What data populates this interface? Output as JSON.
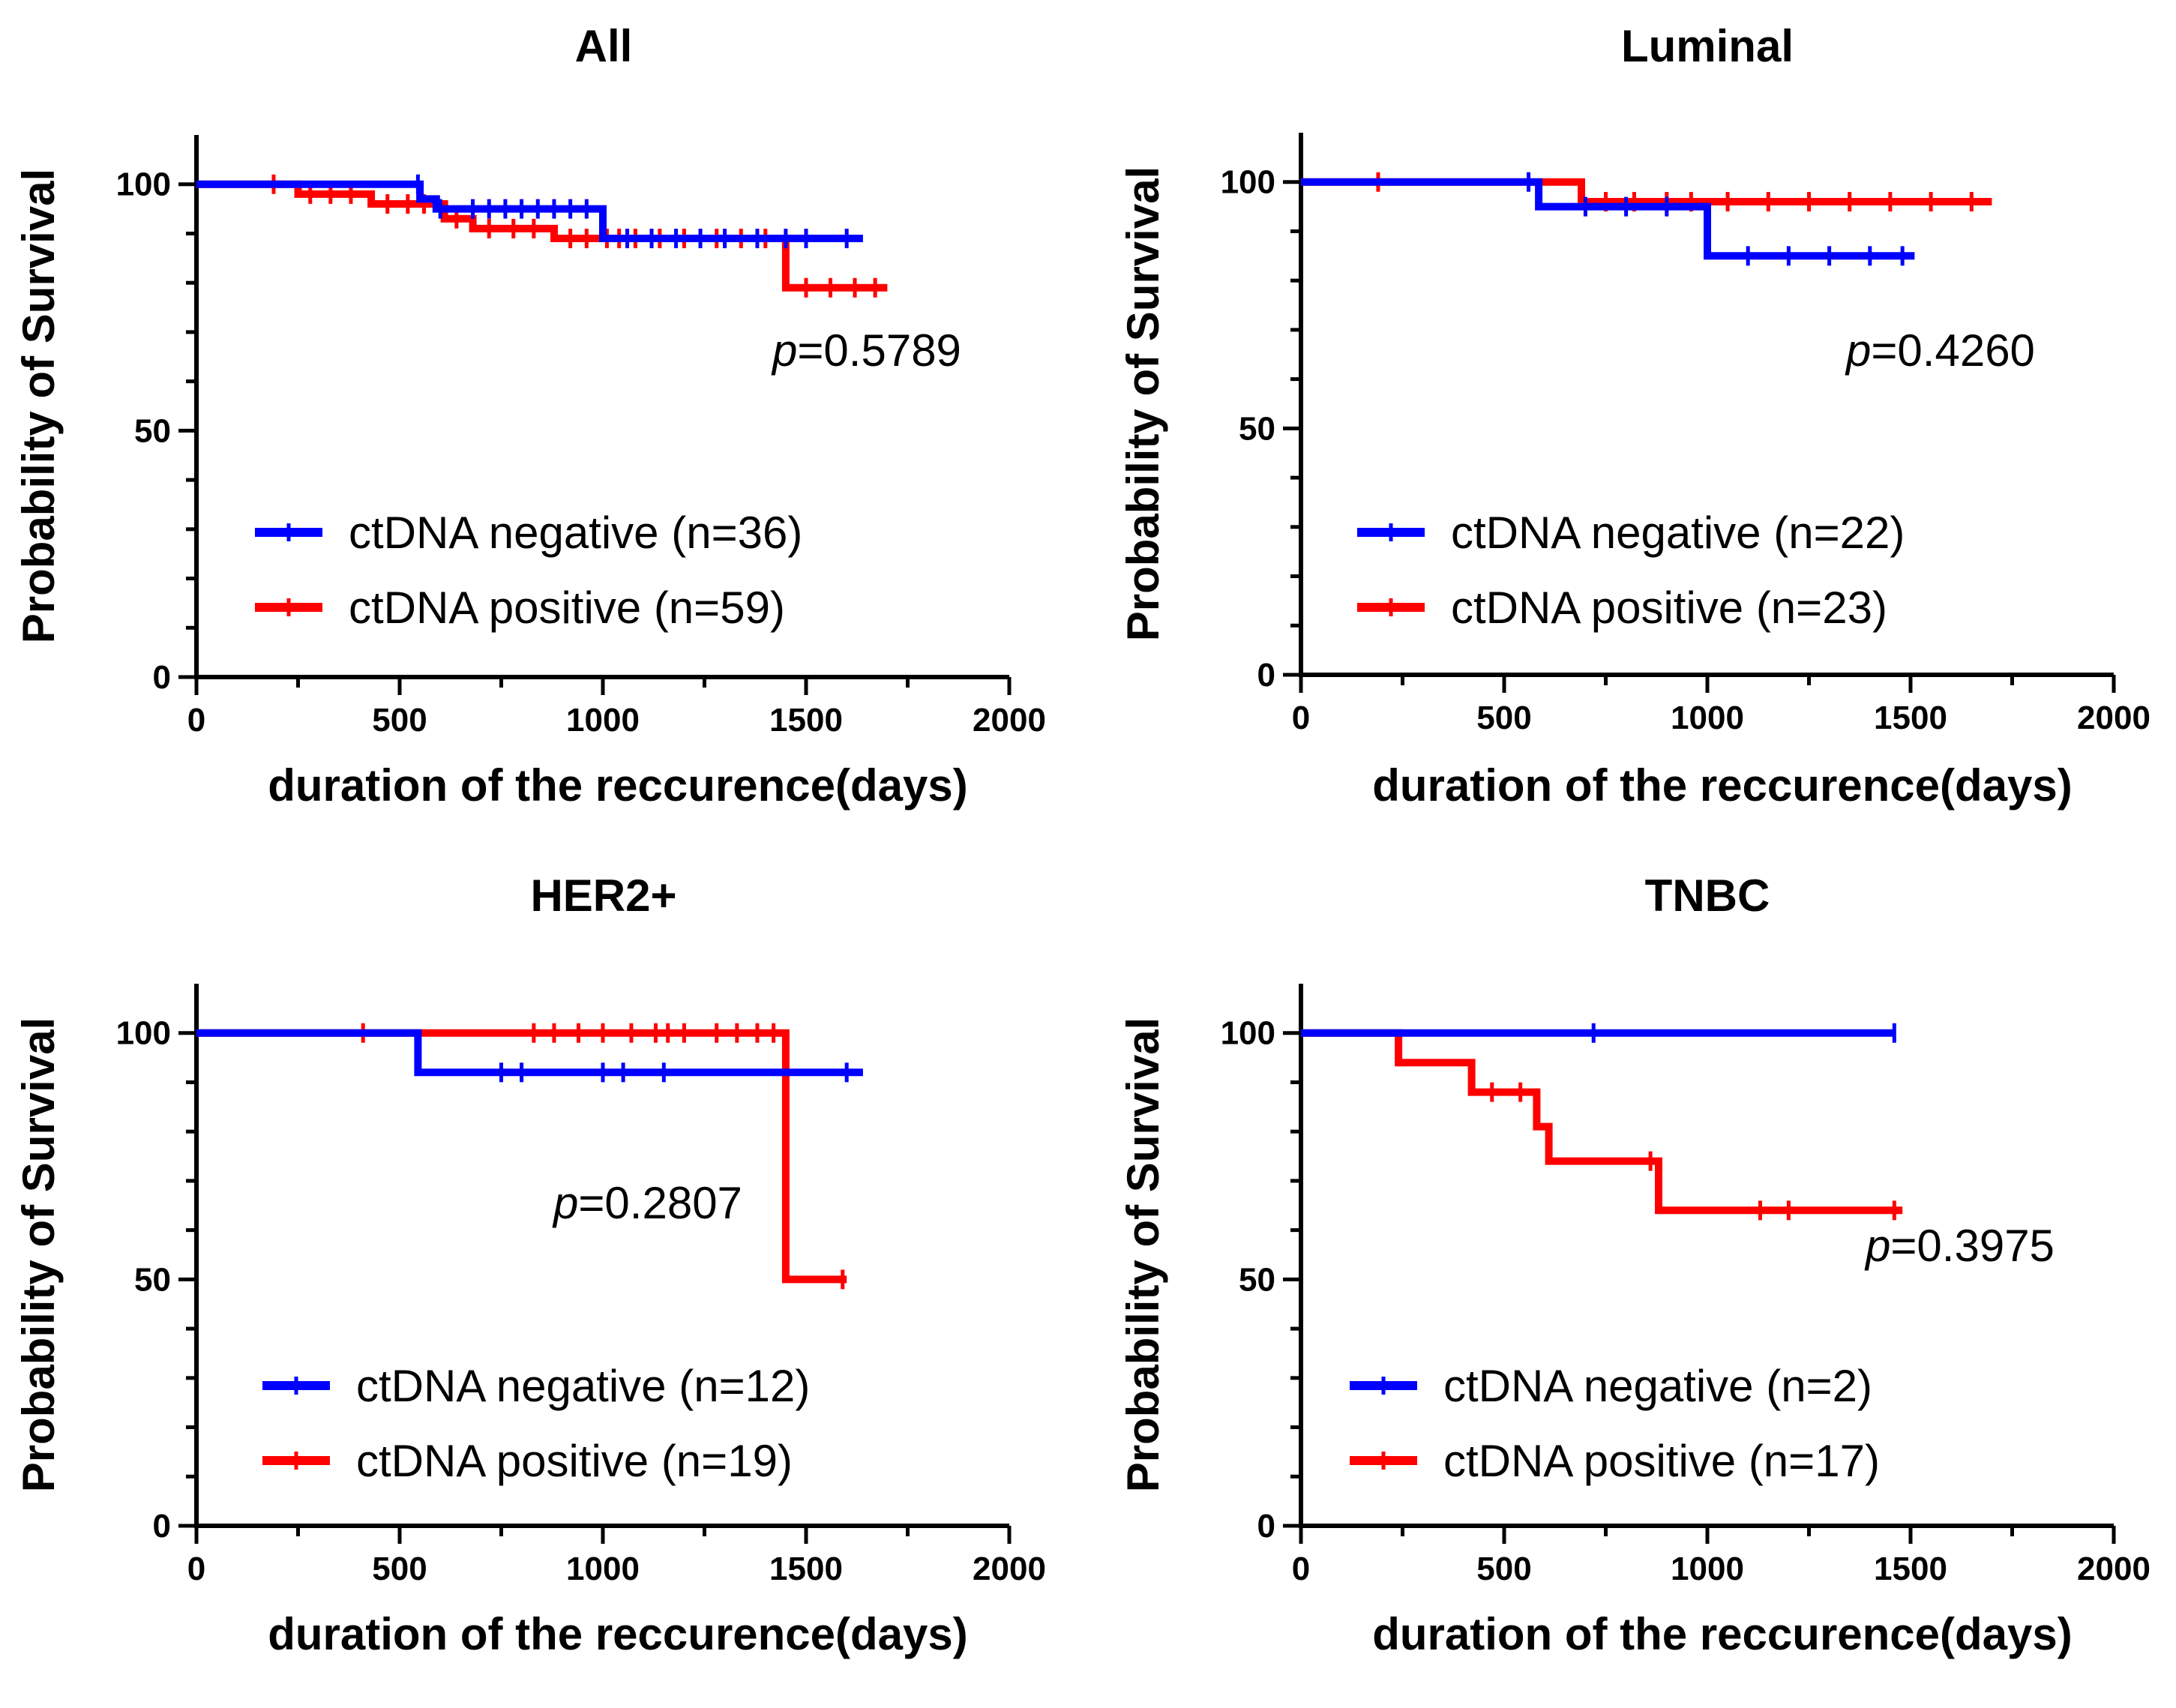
{
  "chart_data": [
    {
      "type": "line",
      "title": "All",
      "xlabel": "duration of the reccurence(days)",
      "ylabel": "Probability of Survival",
      "xlim": [
        0,
        2000
      ],
      "ylim": [
        0,
        110
      ],
      "xticks": [
        0,
        500,
        1000,
        1500,
        2000
      ],
      "yticks": [
        0,
        50,
        100
      ],
      "p_prefix": "p",
      "p_value": "=0.5789",
      "series": [
        {
          "name": "ctDNA negative (n=36)",
          "color": "#0000ff",
          "steps": [
            [
              0,
              100
            ],
            [
              550,
              100
            ],
            [
              550,
              97
            ],
            [
              590,
              97
            ],
            [
              590,
              95
            ],
            [
              1000,
              95
            ],
            [
              1000,
              89
            ],
            [
              1640,
              89
            ]
          ],
          "censor": [
            545,
            600,
            680,
            720,
            760,
            800,
            840,
            880,
            920,
            960,
            1060,
            1120,
            1180,
            1240,
            1300,
            1380,
            1450,
            1500,
            1600
          ]
        },
        {
          "name": "ctDNA positive (n=59)",
          "color": "#ff0000",
          "steps": [
            [
              0,
              100
            ],
            [
              250,
              100
            ],
            [
              250,
              98
            ],
            [
              430,
              98
            ],
            [
              430,
              96
            ],
            [
              610,
              96
            ],
            [
              610,
              93
            ],
            [
              680,
              93
            ],
            [
              680,
              91
            ],
            [
              880,
              91
            ],
            [
              880,
              89
            ],
            [
              1450,
              89
            ],
            [
              1450,
              79
            ],
            [
              1700,
              79
            ]
          ],
          "censor": [
            190,
            280,
            330,
            380,
            470,
            520,
            560,
            640,
            720,
            780,
            830,
            920,
            960,
            1010,
            1040,
            1080,
            1140,
            1200,
            1280,
            1340,
            1400,
            1500,
            1560,
            1620,
            1670
          ]
        }
      ]
    },
    {
      "type": "line",
      "title": "Luminal",
      "xlabel": "duration of the reccurence(days)",
      "ylabel": "Probability of Survival",
      "xlim": [
        0,
        2000
      ],
      "ylim": [
        0,
        110
      ],
      "xticks": [
        0,
        500,
        1000,
        1500,
        2000
      ],
      "yticks": [
        0,
        50,
        100
      ],
      "p_prefix": "p",
      "p_value": "=0.4260",
      "series": [
        {
          "name": "ctDNA negative (n=22)",
          "color": "#0000ff",
          "steps": [
            [
              0,
              100
            ],
            [
              585,
              100
            ],
            [
              585,
              95
            ],
            [
              1000,
              95
            ],
            [
              1000,
              85
            ],
            [
              1510,
              85
            ]
          ],
          "censor": [
            560,
            700,
            800,
            900,
            1100,
            1200,
            1300,
            1400,
            1480
          ]
        },
        {
          "name": "ctDNA positive (n=23)",
          "color": "#ff0000",
          "steps": [
            [
              0,
              100
            ],
            [
              690,
              100
            ],
            [
              690,
              96
            ],
            [
              1700,
              96
            ]
          ],
          "censor": [
            190,
            750,
            820,
            900,
            960,
            1050,
            1150,
            1250,
            1350,
            1450,
            1550,
            1650
          ]
        }
      ]
    },
    {
      "type": "line",
      "title": "HER2+",
      "xlabel": "duration of the reccurence(days)",
      "ylabel": "Probability of Survival",
      "xlim": [
        0,
        2000
      ],
      "ylim": [
        0,
        110
      ],
      "xticks": [
        0,
        500,
        1000,
        1500,
        2000
      ],
      "yticks": [
        0,
        50,
        100
      ],
      "p_prefix": "p",
      "p_value": "=0.2807",
      "series": [
        {
          "name": "ctDNA negative (n=12)",
          "color": "#0000ff",
          "steps": [
            [
              0,
              100
            ],
            [
              545,
              100
            ],
            [
              545,
              92
            ],
            [
              1640,
              92
            ]
          ],
          "censor": [
            750,
            800,
            1000,
            1050,
            1150,
            1600
          ]
        },
        {
          "name": "ctDNA positive (n=19)",
          "color": "#ff0000",
          "steps": [
            [
              0,
              100
            ],
            [
              1450,
              100
            ],
            [
              1450,
              50
            ],
            [
              1600,
              50
            ]
          ],
          "censor": [
            410,
            830,
            880,
            940,
            1000,
            1070,
            1130,
            1160,
            1200,
            1280,
            1330,
            1380,
            1420,
            1590
          ]
        }
      ]
    },
    {
      "type": "line",
      "title": "TNBC",
      "xlabel": "duration of the reccurence(days)",
      "ylabel": "Probability of Survival",
      "xlim": [
        0,
        2000
      ],
      "ylim": [
        0,
        110
      ],
      "xticks": [
        0,
        500,
        1000,
        1500,
        2000
      ],
      "yticks": [
        0,
        50,
        100
      ],
      "p_prefix": "p",
      "p_value": "=0.3975",
      "series": [
        {
          "name": "ctDNA negative (n=2)",
          "color": "#0000ff",
          "steps": [
            [
              0,
              100
            ],
            [
              1460,
              100
            ]
          ],
          "censor": [
            720,
            1460
          ]
        },
        {
          "name": "ctDNA positive (n=17)",
          "color": "#ff0000",
          "steps": [
            [
              0,
              100
            ],
            [
              240,
              100
            ],
            [
              240,
              94
            ],
            [
              420,
              94
            ],
            [
              420,
              88
            ],
            [
              580,
              88
            ],
            [
              580,
              81
            ],
            [
              610,
              81
            ],
            [
              610,
              74
            ],
            [
              880,
              74
            ],
            [
              880,
              64
            ],
            [
              1480,
              64
            ]
          ],
          "censor": [
            470,
            540,
            860,
            1130,
            1200,
            1460
          ]
        }
      ]
    }
  ]
}
